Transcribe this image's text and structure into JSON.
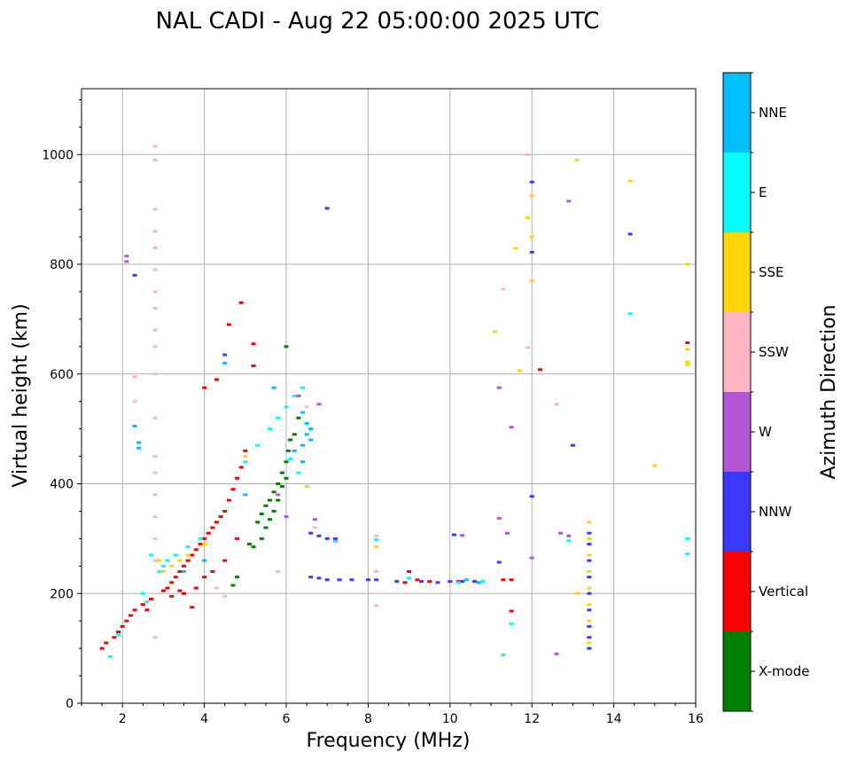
{
  "title": "NAL CADI - Aug 22 05:00:00 2025 UTC",
  "chart_data": {
    "type": "scatter",
    "title": "NAL CADI - Aug 22 05:00:00 2025 UTC",
    "xlabel": "Frequency (MHz)",
    "ylabel": "Virtual height (km)",
    "xlim": [
      1,
      16
    ],
    "ylim": [
      0,
      1120
    ],
    "xticks": [
      2,
      4,
      6,
      8,
      10,
      12,
      14,
      16
    ],
    "yticks": [
      0,
      200,
      400,
      600,
      800,
      1000
    ],
    "grid": true,
    "colorbar": {
      "label": "Azimuth Direction",
      "categories": [
        {
          "name": "X-mode",
          "color": "#008000"
        },
        {
          "name": "Vertical",
          "color": "#ff0000"
        },
        {
          "name": "NNW",
          "color": "#3a3aff"
        },
        {
          "name": "W",
          "color": "#b357d6"
        },
        {
          "name": "SSW",
          "color": "#ffb6c1"
        },
        {
          "name": "SSE",
          "color": "#ffd700"
        },
        {
          "name": "E",
          "color": "#00ffff"
        },
        {
          "name": "NNE",
          "color": "#00bfff"
        }
      ]
    },
    "series": [
      {
        "name": "X-mode",
        "points": [
          [
            4.7,
            215
          ],
          [
            4.8,
            230
          ],
          [
            5.1,
            290
          ],
          [
            5.3,
            330
          ],
          [
            5.4,
            345
          ],
          [
            5.5,
            360
          ],
          [
            5.6,
            370
          ],
          [
            5.7,
            385
          ],
          [
            5.8,
            400
          ],
          [
            5.9,
            420
          ],
          [
            6.0,
            440
          ],
          [
            6.05,
            460
          ],
          [
            6.1,
            480
          ],
          [
            6.0,
            650
          ],
          [
            5.6,
            335
          ],
          [
            5.7,
            350
          ],
          [
            5.8,
            370
          ],
          [
            6.2,
            490
          ],
          [
            6.3,
            520
          ],
          [
            5.5,
            320
          ],
          [
            5.9,
            395
          ],
          [
            6.0,
            410
          ],
          [
            5.4,
            300
          ],
          [
            5.2,
            285
          ]
        ]
      },
      {
        "name": "Vertical",
        "points": [
          [
            1.5,
            100
          ],
          [
            1.6,
            110
          ],
          [
            1.8,
            120
          ],
          [
            1.9,
            130
          ],
          [
            2.0,
            140
          ],
          [
            2.1,
            150
          ],
          [
            2.2,
            160
          ],
          [
            2.3,
            170
          ],
          [
            2.5,
            180
          ],
          [
            2.6,
            170
          ],
          [
            2.7,
            190
          ],
          [
            3.0,
            205
          ],
          [
            3.1,
            210
          ],
          [
            3.2,
            220
          ],
          [
            3.3,
            230
          ],
          [
            3.4,
            240
          ],
          [
            3.5,
            250
          ],
          [
            3.6,
            260
          ],
          [
            3.7,
            270
          ],
          [
            3.8,
            280
          ],
          [
            3.9,
            290
          ],
          [
            4.0,
            300
          ],
          [
            4.1,
            310
          ],
          [
            4.2,
            320
          ],
          [
            4.3,
            330
          ],
          [
            4.4,
            340
          ],
          [
            4.5,
            350
          ],
          [
            4.6,
            370
          ],
          [
            4.7,
            390
          ],
          [
            4.8,
            410
          ],
          [
            4.9,
            430
          ],
          [
            5.0,
            460
          ],
          [
            3.5,
            200
          ],
          [
            3.8,
            210
          ],
          [
            4.0,
            230
          ],
          [
            4.2,
            240
          ],
          [
            4.5,
            260
          ],
          [
            4.8,
            300
          ],
          [
            4.6,
            690
          ],
          [
            4.9,
            730
          ],
          [
            5.2,
            655
          ],
          [
            5.2,
            615
          ],
          [
            4.3,
            590
          ],
          [
            4.0,
            575
          ],
          [
            8.9,
            220
          ],
          [
            9.0,
            240
          ],
          [
            9.2,
            225
          ],
          [
            9.5,
            222
          ],
          [
            10.2,
            222
          ],
          [
            11.3,
            225
          ],
          [
            11.5,
            168
          ],
          [
            11.5,
            225
          ],
          [
            12.2,
            608
          ],
          [
            15.8,
            657
          ],
          [
            3.7,
            175
          ],
          [
            3.2,
            195
          ],
          [
            3.4,
            205
          ]
        ]
      },
      {
        "name": "NNW",
        "points": [
          [
            6.6,
            310
          ],
          [
            6.8,
            305
          ],
          [
            7.0,
            300
          ],
          [
            7.2,
            300
          ],
          [
            6.6,
            230
          ],
          [
            6.8,
            228
          ],
          [
            7.0,
            225
          ],
          [
            7.3,
            225
          ],
          [
            7.6,
            225
          ],
          [
            8.0,
            225
          ],
          [
            8.2,
            225
          ],
          [
            8.7,
            222
          ],
          [
            9.3,
            222
          ],
          [
            9.7,
            220
          ],
          [
            10.0,
            222
          ],
          [
            10.3,
            222
          ],
          [
            10.6,
            222
          ],
          [
            10.1,
            307
          ],
          [
            11.2,
            257
          ],
          [
            12.0,
            377
          ],
          [
            12.0,
            822
          ],
          [
            12.0,
            950
          ],
          [
            13.0,
            470
          ],
          [
            13.4,
            310
          ],
          [
            13.4,
            290
          ],
          [
            13.4,
            260
          ],
          [
            13.4,
            230
          ],
          [
            13.4,
            200
          ],
          [
            13.4,
            170
          ],
          [
            13.4,
            140
          ],
          [
            13.4,
            120
          ],
          [
            13.4,
            100
          ],
          [
            14.4,
            855
          ],
          [
            7.0,
            902
          ],
          [
            4.5,
            635
          ],
          [
            2.3,
            780
          ]
        ]
      },
      {
        "name": "W",
        "points": [
          [
            2.1,
            815
          ],
          [
            2.1,
            805
          ],
          [
            6.7,
            335
          ],
          [
            6.3,
            560
          ],
          [
            6.8,
            545
          ],
          [
            10.3,
            306
          ],
          [
            11.2,
            337
          ],
          [
            11.4,
            310
          ],
          [
            11.5,
            503
          ],
          [
            11.2,
            575
          ],
          [
            12.0,
            265
          ],
          [
            12.6,
            90
          ],
          [
            12.7,
            310
          ],
          [
            12.9,
            305
          ],
          [
            12.9,
            915
          ],
          [
            6.0,
            340
          ],
          [
            5.8,
            380
          ]
        ]
      },
      {
        "name": "SSW",
        "points": [
          [
            2.8,
            990
          ],
          [
            2.8,
            1015
          ],
          [
            2.8,
            900
          ],
          [
            2.8,
            860
          ],
          [
            2.8,
            830
          ],
          [
            2.8,
            790
          ],
          [
            2.8,
            750
          ],
          [
            2.8,
            720
          ],
          [
            2.8,
            680
          ],
          [
            2.8,
            650
          ],
          [
            2.8,
            600
          ],
          [
            2.8,
            520
          ],
          [
            2.8,
            450
          ],
          [
            2.8,
            420
          ],
          [
            2.8,
            380
          ],
          [
            2.8,
            340
          ],
          [
            2.8,
            300
          ],
          [
            2.8,
            260
          ],
          [
            2.8,
            120
          ],
          [
            2.3,
            595
          ],
          [
            2.3,
            550
          ],
          [
            8.2,
            240
          ],
          [
            8.2,
            178
          ],
          [
            8.2,
            305
          ],
          [
            11.3,
            755
          ],
          [
            11.9,
            648
          ],
          [
            11.9,
            1000
          ],
          [
            12.6,
            545
          ],
          [
            6.5,
            540
          ],
          [
            6.7,
            320
          ],
          [
            4.3,
            210
          ],
          [
            4.5,
            195
          ],
          [
            5.8,
            240
          ]
        ]
      },
      {
        "name": "SSE",
        "points": [
          [
            3.2,
            250
          ],
          [
            3.4,
            260
          ],
          [
            3.6,
            270
          ],
          [
            4.0,
            290
          ],
          [
            8.2,
            285
          ],
          [
            11.1,
            677
          ],
          [
            11.7,
            606
          ],
          [
            11.9,
            885
          ],
          [
            12.0,
            850
          ],
          [
            12.0,
            770
          ],
          [
            12.0,
            925
          ],
          [
            13.1,
            990
          ],
          [
            13.1,
            200
          ],
          [
            13.4,
            330
          ],
          [
            13.4,
            300
          ],
          [
            13.4,
            270
          ],
          [
            13.4,
            240
          ],
          [
            13.4,
            210
          ],
          [
            13.4,
            180
          ],
          [
            13.4,
            150
          ],
          [
            13.4,
            110
          ],
          [
            14.4,
            952
          ],
          [
            15.0,
            433
          ],
          [
            15.8,
            800
          ],
          [
            15.8,
            645
          ],
          [
            15.8,
            622
          ],
          [
            15.8,
            617
          ],
          [
            11.6,
            829
          ],
          [
            6.5,
            395
          ],
          [
            5.0,
            450
          ],
          [
            3.0,
            240
          ],
          [
            2.9,
            260
          ]
        ]
      },
      {
        "name": "E",
        "points": [
          [
            2.9,
            240
          ],
          [
            3.0,
            250
          ],
          [
            3.1,
            260
          ],
          [
            2.7,
            270
          ],
          [
            3.3,
            270
          ],
          [
            3.6,
            285
          ],
          [
            3.9,
            300
          ],
          [
            2.5,
            200
          ],
          [
            2.6,
            185
          ],
          [
            1.7,
            85
          ],
          [
            1.9,
            125
          ],
          [
            5.0,
            440
          ],
          [
            5.3,
            470
          ],
          [
            5.6,
            500
          ],
          [
            5.8,
            520
          ],
          [
            6.0,
            540
          ],
          [
            6.2,
            560
          ],
          [
            6.4,
            575
          ],
          [
            7.2,
            295
          ],
          [
            8.2,
            298
          ],
          [
            9.0,
            228
          ],
          [
            10.2,
            220
          ],
          [
            10.8,
            222
          ],
          [
            11.3,
            88
          ],
          [
            11.5,
            145
          ],
          [
            12.9,
            296
          ],
          [
            14.4,
            710
          ],
          [
            15.8,
            300
          ],
          [
            15.8,
            272
          ],
          [
            6.3,
            420
          ],
          [
            6.1,
            445
          ]
        ]
      },
      {
        "name": "NNE",
        "points": [
          [
            2.4,
            475
          ],
          [
            2.4,
            465
          ],
          [
            2.3,
            505
          ],
          [
            6.4,
            530
          ],
          [
            6.5,
            510
          ],
          [
            6.5,
            490
          ],
          [
            6.4,
            470
          ],
          [
            6.6,
            480
          ],
          [
            6.6,
            500
          ],
          [
            10.4,
            225
          ],
          [
            10.7,
            220
          ],
          [
            4.5,
            620
          ],
          [
            4.0,
            260
          ],
          [
            3.5,
            240
          ],
          [
            5.0,
            380
          ],
          [
            6.2,
            460
          ],
          [
            6.4,
            440
          ],
          [
            5.7,
            575
          ]
        ]
      }
    ]
  }
}
